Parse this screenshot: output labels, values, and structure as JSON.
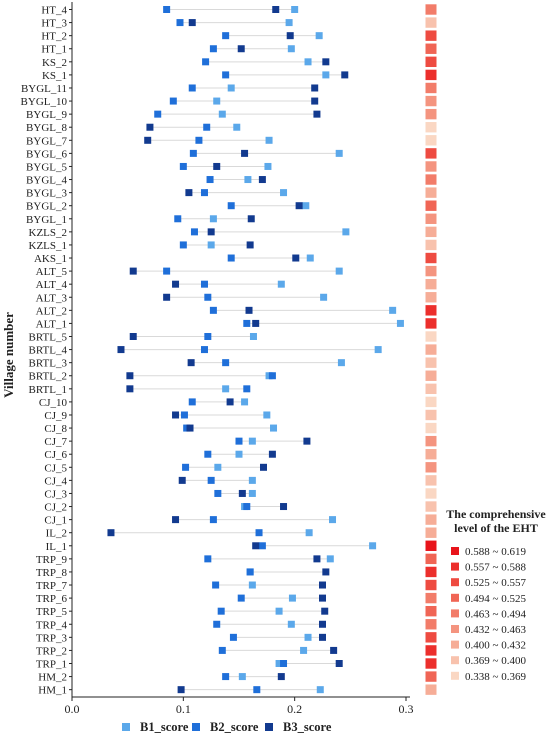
{
  "chart_data": {
    "type": "dumbbell",
    "ylabel": "Village number",
    "xlim": [
      0,
      0.3
    ],
    "xticks": [
      "0.0",
      "0.1",
      "0.2",
      "0.3"
    ],
    "grid": false,
    "legend_position": "bottom",
    "series": [
      {
        "name": "B1_score",
        "color": "#5ba8ea"
      },
      {
        "name": "B2_score",
        "color": "#1f6fd9"
      },
      {
        "name": "B3_score",
        "color": "#123a8f"
      }
    ],
    "villages": [
      "HT_4",
      "HT_3",
      "HT_2",
      "HT_1",
      "KS_2",
      "KS_1",
      "BYGL_11",
      "BYGL_10",
      "BYGL_9",
      "BYGL_8",
      "BYGL_7",
      "BYGL_6",
      "BYGL_5",
      "BYGL_4",
      "BYGL_3",
      "BYGL_2",
      "BYGL_1",
      "KZLS_2",
      "KZLS_1",
      "AKS_1",
      "ALT_5",
      "ALT_4",
      "ALT_3",
      "ALT_2",
      "ALT_1",
      "BRTL_5",
      "BRTL_4",
      "BRTL_3",
      "BRTL_2",
      "BRTL_1",
      "CJ_10",
      "CJ_9",
      "CJ_8",
      "CJ_7",
      "CJ_6",
      "CJ_5",
      "CJ_4",
      "CJ_3",
      "CJ_2",
      "CJ_1",
      "IL_2",
      "IL_1",
      "TRP_9",
      "TRP_8",
      "TRP_7",
      "TRP_6",
      "TRP_5",
      "TRP_4",
      "TRP_3",
      "TRP_2",
      "TRP_1",
      "HM_2",
      "HM_1"
    ],
    "b1": [
      0.2,
      0.195,
      0.222,
      0.197,
      0.212,
      0.228,
      0.143,
      0.13,
      0.135,
      0.148,
      0.177,
      0.24,
      0.176,
      0.158,
      0.19,
      0.21,
      0.127,
      0.246,
      0.125,
      0.214,
      0.24,
      0.188,
      0.226,
      0.288,
      0.295,
      0.163,
      0.275,
      0.242,
      0.177,
      0.138,
      0.155,
      0.175,
      0.181,
      0.162,
      0.15,
      0.131,
      0.162,
      0.162,
      0.155,
      0.234,
      0.213,
      0.27,
      0.232,
      0.16,
      0.162,
      0.198,
      0.186,
      0.197,
      0.212,
      0.208,
      0.186,
      0.153,
      0.223
    ],
    "b2": [
      0.085,
      0.097,
      0.138,
      0.127,
      0.12,
      0.138,
      0.108,
      0.091,
      0.077,
      0.121,
      0.114,
      0.109,
      0.1,
      0.124,
      0.119,
      0.143,
      0.095,
      0.11,
      0.1,
      0.143,
      0.085,
      0.119,
      0.122,
      0.127,
      0.157,
      0.122,
      0.119,
      0.138,
      0.18,
      0.157,
      0.108,
      0.101,
      0.103,
      0.15,
      0.122,
      0.102,
      0.125,
      0.131,
      0.157,
      0.127,
      0.168,
      0.171,
      0.122,
      0.16,
      0.129,
      0.152,
      0.134,
      0.13,
      0.145,
      0.135,
      0.19,
      0.138,
      0.166
    ],
    "b3": [
      0.183,
      0.108,
      0.196,
      0.152,
      0.228,
      0.245,
      0.218,
      0.218,
      0.22,
      0.07,
      0.068,
      0.155,
      0.13,
      0.171,
      0.105,
      0.204,
      0.161,
      0.125,
      0.16,
      0.201,
      0.055,
      0.093,
      0.085,
      0.159,
      0.165,
      0.055,
      0.044,
      0.107,
      0.052,
      0.052,
      0.142,
      0.093,
      0.106,
      0.211,
      0.18,
      0.172,
      0.099,
      0.153,
      0.19,
      0.093,
      0.035,
      0.165,
      0.22,
      0.228,
      0.225,
      0.225,
      0.227,
      0.225,
      0.225,
      0.235,
      0.24,
      0.188,
      0.098
    ],
    "eht_class": [
      5,
      2,
      7,
      6,
      7,
      8,
      5,
      4,
      4,
      1,
      1,
      7,
      4,
      5,
      3,
      6,
      4,
      3,
      2,
      7,
      4,
      3,
      3,
      8,
      8,
      1,
      3,
      2,
      3,
      2,
      1,
      2,
      1,
      4,
      3,
      4,
      2,
      1,
      2,
      3,
      3,
      9,
      6,
      8,
      7,
      5,
      6,
      5,
      7,
      8,
      8,
      6,
      3
    ],
    "eht_legend": {
      "title": "The comprehensive level of the EHT",
      "ranges": [
        "0.588 ~ 0.619",
        "0.557 ~ 0.588",
        "0.525 ~ 0.557",
        "0.494 ~ 0.525",
        "0.463 ~ 0.494",
        "0.432 ~ 0.463",
        "0.400 ~ 0.432",
        "0.369 ~ 0.400",
        "0.338 ~ 0.369"
      ],
      "colors": [
        "#e8141b",
        "#ec2f2c",
        "#ee4b41",
        "#f06555",
        "#f27c69",
        "#f4947f",
        "#f6ad97",
        "#f8c2ad",
        "#fad7c3"
      ]
    }
  }
}
